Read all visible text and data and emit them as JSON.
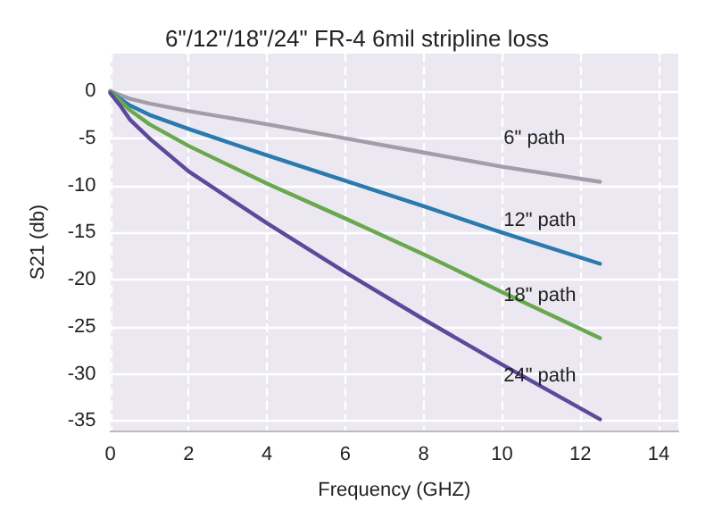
{
  "chart_data": {
    "type": "line",
    "title": "6\"/12\"/18\"/24\" FR-4 6mil stripline loss",
    "xlabel": "Frequency (GHZ)",
    "ylabel": "S21 (db)",
    "xlim": [
      0,
      14.5
    ],
    "xticks": [
      0,
      2,
      4,
      6,
      8,
      10,
      12,
      14
    ],
    "ylim": [
      -36,
      4
    ],
    "yticks": [
      -35,
      -30,
      -25,
      -20,
      -15,
      -10,
      -5,
      0
    ],
    "grid": true,
    "marker": "none",
    "line_style": "solid",
    "x": [
      0,
      0.25,
      0.5,
      1,
      2,
      4,
      6,
      8,
      10,
      12.5
    ],
    "series": [
      {
        "name": "6\" path",
        "color": "#a39dab",
        "values": [
          0,
          -0.4,
          -0.8,
          -1.3,
          -2.1,
          -3.5,
          -5,
          -6.5,
          -8,
          -9.6
        ]
      },
      {
        "name": "12\" path",
        "color": "#2a7ab0",
        "values": [
          0,
          -0.8,
          -1.5,
          -2.5,
          -4,
          -6.8,
          -9.5,
          -12.2,
          -15,
          -18.3
        ]
      },
      {
        "name": "18\" path",
        "color": "#6aa84f",
        "values": [
          0,
          -1,
          -2,
          -3.5,
          -5.8,
          -9.8,
          -13.5,
          -17.3,
          -21.3,
          -26.2
        ]
      },
      {
        "name": "24\" path",
        "color": "#5a4a9a",
        "values": [
          -0.2,
          -1.5,
          -3,
          -5,
          -8.5,
          -14,
          -19.2,
          -24.2,
          -29,
          -34.8
        ]
      }
    ]
  }
}
